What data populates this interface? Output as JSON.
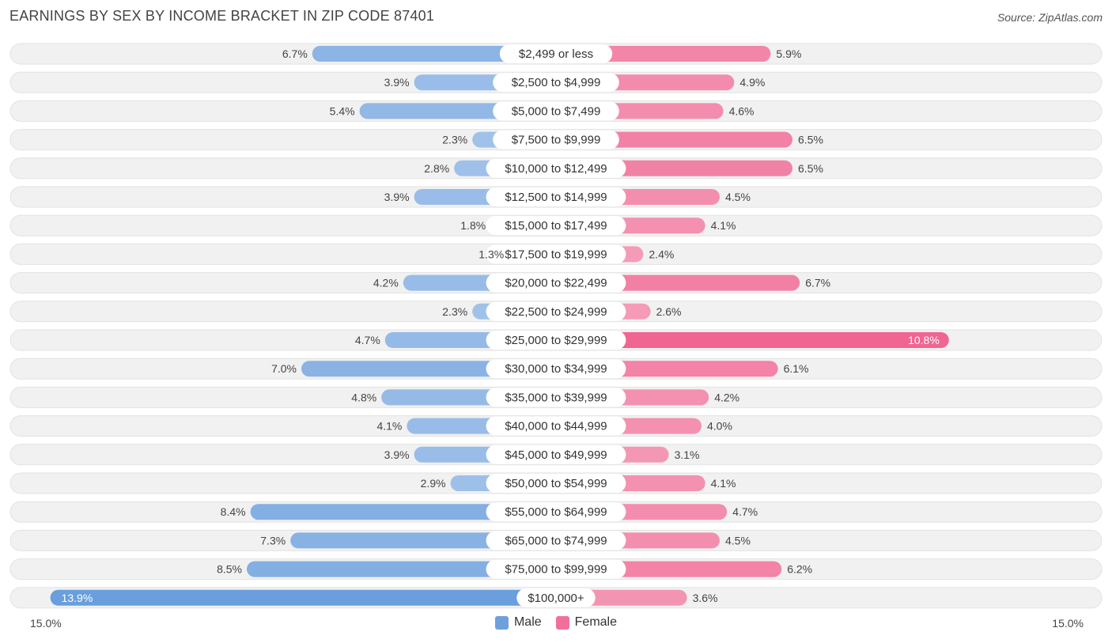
{
  "header": {
    "title": "EARNINGS BY SEX BY INCOME BRACKET IN ZIP CODE 87401",
    "source": "Source: ZipAtlas.com"
  },
  "axis": {
    "left_label": "15.0%",
    "right_label": "15.0%"
  },
  "legend": [
    {
      "name": "Male",
      "color": "#6fa0dc"
    },
    {
      "name": "Female",
      "color": "#f07099"
    }
  ],
  "chart_data": {
    "type": "bar",
    "orientation": "horizontal-diverging",
    "title": "EARNINGS BY SEX BY INCOME BRACKET IN ZIP CODE 87401",
    "xlim": [
      -15.0,
      15.0
    ],
    "unit": "%",
    "categories": [
      "$2,499 or less",
      "$2,500 to $4,999",
      "$5,000 to $7,499",
      "$7,500 to $9,999",
      "$10,000 to $12,499",
      "$12,500 to $14,999",
      "$15,000 to $17,499",
      "$17,500 to $19,999",
      "$20,000 to $22,499",
      "$22,500 to $24,999",
      "$25,000 to $29,999",
      "$30,000 to $34,999",
      "$35,000 to $39,999",
      "$40,000 to $44,999",
      "$45,000 to $49,999",
      "$50,000 to $54,999",
      "$55,000 to $64,999",
      "$65,000 to $74,999",
      "$75,000 to $99,999",
      "$100,000+"
    ],
    "series": [
      {
        "name": "Male",
        "values": [
          6.7,
          3.9,
          5.4,
          2.3,
          2.8,
          3.9,
          1.8,
          1.3,
          4.2,
          2.3,
          4.7,
          7.0,
          4.8,
          4.1,
          3.9,
          2.9,
          8.4,
          7.3,
          8.5,
          13.9
        ]
      },
      {
        "name": "Female",
        "values": [
          5.9,
          4.9,
          4.6,
          6.5,
          6.5,
          4.5,
          4.1,
          2.4,
          6.7,
          2.6,
          10.8,
          6.1,
          4.2,
          4.0,
          3.1,
          4.1,
          4.7,
          4.5,
          6.2,
          3.6
        ]
      }
    ],
    "value_labels": {
      "Male": [
        "6.7%",
        "3.9%",
        "5.4%",
        "2.3%",
        "2.8%",
        "3.9%",
        "1.8%",
        "1.3%",
        "4.2%",
        "2.3%",
        "4.7%",
        "7.0%",
        "4.8%",
        "4.1%",
        "3.9%",
        "2.9%",
        "8.4%",
        "7.3%",
        "8.5%",
        "13.9%"
      ],
      "Female": [
        "5.9%",
        "4.9%",
        "4.6%",
        "6.5%",
        "6.5%",
        "4.5%",
        "4.1%",
        "2.4%",
        "6.7%",
        "2.6%",
        "10.8%",
        "6.1%",
        "4.2%",
        "4.0%",
        "3.1%",
        "4.1%",
        "4.7%",
        "4.5%",
        "6.2%",
        "3.6%"
      ]
    }
  }
}
